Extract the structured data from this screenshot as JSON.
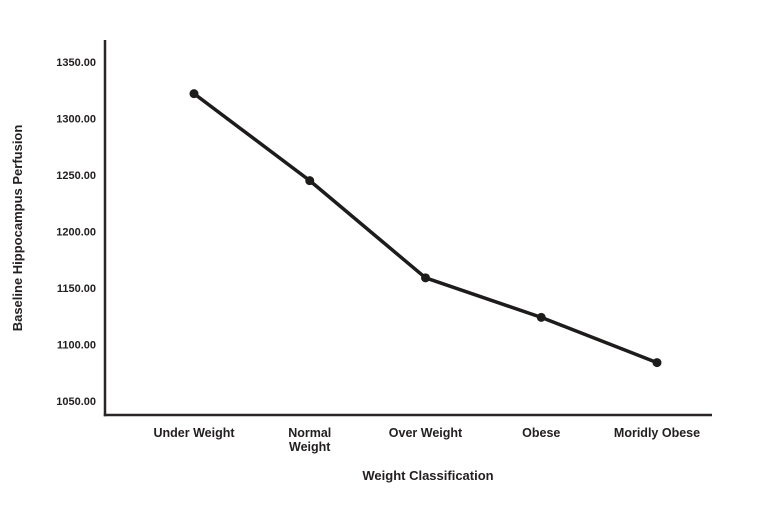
{
  "colors": {
    "background": "#ffffff",
    "line": "#1e1b1b",
    "marker": "#1e1b1b",
    "axis": "#2a2627",
    "text": "#242021"
  },
  "chart_data": {
    "type": "line",
    "categories": [
      "Under Weight",
      "Normal Weight",
      "Over Weight",
      "Obese",
      "Moridly Obese"
    ],
    "category_label_lines": [
      [
        "Under Weight"
      ],
      [
        "Normal",
        "Weight"
      ],
      [
        "Over Weight"
      ],
      [
        "Obese"
      ],
      [
        "Moridly Obese"
      ]
    ],
    "values": [
      1322,
      1245,
      1159,
      1124,
      1084
    ],
    "title": "",
    "xlabel": "Weight Classification",
    "ylabel": "Baseline Hippocampus Perfusion",
    "yticks": [
      1050,
      1100,
      1150,
      1200,
      1250,
      1300,
      1350
    ],
    "ytick_labels": [
      "1050.00",
      "1100.00",
      "1150.00",
      "1200.00",
      "1250.00",
      "1300.00",
      "1350.00"
    ],
    "ylim": [
      1050,
      1350
    ],
    "grid": false,
    "legend_position": "none",
    "marker": "circle"
  }
}
